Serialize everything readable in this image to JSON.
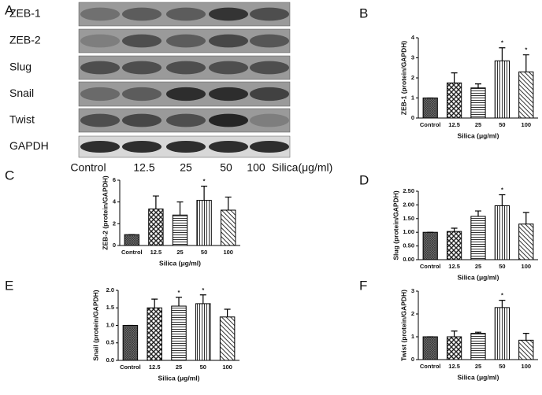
{
  "blot": {
    "label": "A",
    "rows": [
      "ZEB-1",
      "ZEB-2",
      "Slug",
      "Snail",
      "Twist",
      "GAPDH"
    ],
    "lanes": [
      "Control",
      "12.5",
      "25",
      "50",
      "100"
    ],
    "lane_title": "Silica(μg/ml)"
  },
  "chart_data": [
    {
      "type": "bar",
      "panel": "B",
      "y_label": "ZEB-1 (protein/GAPDH)",
      "x_label": "Silica (μg/ml)",
      "categories": [
        "Control",
        "12.5",
        "25",
        "50",
        "100"
      ],
      "values": [
        1,
        1.75,
        1.5,
        2.85,
        2.3
      ],
      "errors": [
        0,
        0.5,
        0.2,
        0.65,
        0.85
      ],
      "ylim": [
        0,
        4
      ],
      "yticks": [
        0,
        1,
        2,
        3,
        4
      ],
      "annotations": [
        {
          "category": "50",
          "text": "*"
        },
        {
          "category": "100",
          "text": "*"
        }
      ]
    },
    {
      "type": "bar",
      "panel": "C",
      "y_label": "ZEB-2 (protein/GAPDH)",
      "x_label": "Silica (μg/ml)",
      "categories": [
        "Control",
        "12.5",
        "25",
        "50",
        "100"
      ],
      "values": [
        1,
        3.35,
        2.8,
        4.15,
        3.25
      ],
      "errors": [
        0,
        1.2,
        1.2,
        1.3,
        1.2
      ],
      "ylim": [
        0,
        6
      ],
      "yticks": [
        0,
        2,
        4,
        6
      ],
      "annotations": [
        {
          "category": "50",
          "text": "*"
        }
      ]
    },
    {
      "type": "bar",
      "panel": "D",
      "y_label": "Slug (protein/GAPDH)",
      "x_label": "Silica (μg/ml)",
      "categories": [
        "Control",
        "12.5",
        "25",
        "50",
        "100"
      ],
      "values": [
        1,
        1.03,
        1.58,
        1.97,
        1.3
      ],
      "errors": [
        0,
        0.12,
        0.2,
        0.4,
        0.42
      ],
      "ylim": [
        0,
        2.5
      ],
      "yticks": [
        {
          "value": 0,
          "label": "0.00"
        },
        {
          "value": 0.5,
          "label": "0.50"
        },
        {
          "value": 1,
          "label": "1.00"
        },
        {
          "value": 1.5,
          "label": "1.50"
        },
        {
          "value": 2,
          "label": "2.00"
        },
        {
          "value": 2.5,
          "label": "2.50"
        }
      ],
      "annotations": [
        {
          "category": "50",
          "text": "*"
        }
      ]
    },
    {
      "type": "bar",
      "panel": "E",
      "y_label": "Snail (protein/GAPDH)",
      "x_label": "Silica (μg/ml)",
      "categories": [
        "Control",
        "12.5",
        "25",
        "50",
        "100"
      ],
      "values": [
        1,
        1.5,
        1.55,
        1.62,
        1.24
      ],
      "errors": [
        0,
        0.25,
        0.25,
        0.25,
        0.22
      ],
      "ylim": [
        0,
        2
      ],
      "yticks": [
        {
          "value": 0,
          "label": "0.0"
        },
        0.5,
        {
          "value": 1,
          "label": "1.0"
        },
        1.5,
        {
          "value": 2,
          "label": "2.0"
        }
      ],
      "annotations": [
        {
          "category": "25",
          "text": "*"
        },
        {
          "category": "50",
          "text": "*"
        }
      ]
    },
    {
      "type": "bar",
      "panel": "F",
      "y_label": "Twist (protein/GAPDH)",
      "x_label": "Silica (μg/ml)",
      "categories": [
        "Control",
        "12.5",
        "25",
        "50",
        "100"
      ],
      "values": [
        1,
        1.0,
        1.15,
        2.28,
        0.85
      ],
      "errors": [
        0,
        0.25,
        0.05,
        0.32,
        0.3
      ],
      "ylim": [
        0,
        3
      ],
      "yticks": [
        0,
        1,
        2,
        3
      ],
      "annotations": [
        {
          "category": "50",
          "text": "*"
        }
      ]
    }
  ]
}
